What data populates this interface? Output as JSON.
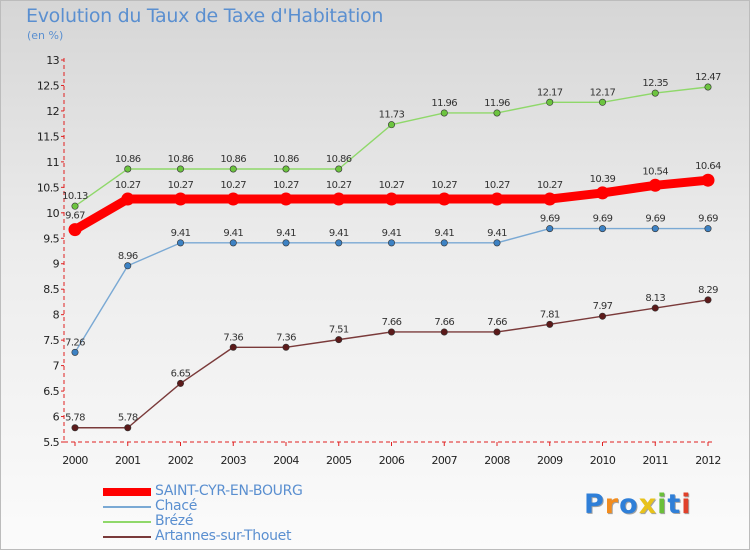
{
  "header": {
    "title": "Evolution du Taux de Taxe d'Habitation",
    "unit": "(en %)"
  },
  "chart_data": {
    "type": "line",
    "title": "Evolution du Taux de Taxe d'Habitation",
    "ylabel": "(en %)",
    "xlabel": "",
    "ylim": [
      5.5,
      13
    ],
    "yticks": [
      "5.5",
      "6",
      "6.5",
      "7",
      "7.5",
      "8",
      "8.5",
      "9",
      "9.5",
      "10",
      "10.5",
      "11",
      "11.5",
      "12",
      "12.5",
      "13"
    ],
    "categories": [
      "2000",
      "2001",
      "2002",
      "2003",
      "2004",
      "2005",
      "2006",
      "2007",
      "2008",
      "2009",
      "2010",
      "2011",
      "2012"
    ],
    "series": [
      {
        "name": "SAINT-CYR-EN-BOURG",
        "color": "#ff0000",
        "marker": "#ff0000",
        "emphasis": true,
        "values": [
          9.67,
          10.27,
          10.27,
          10.27,
          10.27,
          10.27,
          10.27,
          10.27,
          10.27,
          10.27,
          10.39,
          10.54,
          10.64
        ],
        "labels": [
          "9.67",
          "10.27",
          "10.27",
          "10.27",
          "10.27",
          "10.27",
          "10.27",
          "10.27",
          "10.27",
          "10.27",
          "10.39",
          "10.54",
          "10.64"
        ]
      },
      {
        "name": "Chacé",
        "color": "#7aa9d4",
        "marker": "#3d82c4",
        "emphasis": false,
        "values": [
          7.26,
          8.96,
          9.41,
          9.41,
          9.41,
          9.41,
          9.41,
          9.41,
          9.41,
          9.69,
          9.69,
          9.69,
          9.69
        ],
        "labels": [
          "7.26",
          "8.96",
          "9.41",
          "9.41",
          "9.41",
          "9.41",
          "9.41",
          "9.41",
          "9.41",
          "9.69",
          "9.69",
          "9.69",
          "9.69"
        ]
      },
      {
        "name": "Brézé",
        "color": "#8fd86a",
        "marker": "#6cc43f",
        "emphasis": false,
        "values": [
          10.13,
          10.86,
          10.86,
          10.86,
          10.86,
          10.86,
          11.73,
          11.96,
          11.96,
          12.17,
          12.17,
          12.35,
          12.47
        ],
        "labels": [
          "10.13",
          "10.86",
          "10.86",
          "10.86",
          "10.86",
          "10.86",
          "11.73",
          "11.96",
          "11.96",
          "12.17",
          "12.17",
          "12.35",
          "12.47"
        ]
      },
      {
        "name": "Artannes-sur-Thouet",
        "color": "#7a3a3a",
        "marker": "#5c1a1a",
        "emphasis": false,
        "values": [
          5.78,
          5.78,
          6.65,
          7.36,
          7.36,
          7.51,
          7.66,
          7.66,
          7.66,
          7.81,
          7.97,
          8.13,
          8.29
        ],
        "labels": [
          "5.78",
          "5.78",
          "6.65",
          "7.36",
          "7.36",
          "7.51",
          "7.66",
          "7.66",
          "7.66",
          "7.81",
          "7.97",
          "8.13",
          "8.29"
        ]
      }
    ],
    "legend": [
      "SAINT-CYR-EN-BOURG",
      "Chacé",
      "Brézé",
      "Artannes-sur-Thouet"
    ],
    "legend_position": "bottom-left",
    "grid": false
  },
  "logo": {
    "letters": [
      "P",
      "r",
      "o",
      "x",
      "i",
      "t",
      "i"
    ],
    "colors": [
      "#2f7fd8",
      "#f28c1e",
      "#2f7fd8",
      "#e8c21a",
      "#6bbf3a",
      "#2f7fd8",
      "#e0402a"
    ]
  }
}
